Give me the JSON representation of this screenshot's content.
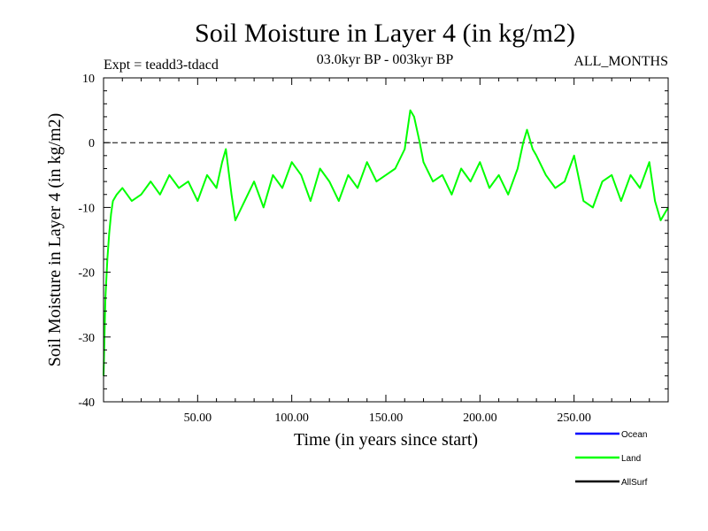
{
  "chart_data": {
    "type": "line",
    "title": "Soil Moisture in Layer 4 (in kg/m2)",
    "subtitle_left": "Expt = teadd3-tdacd",
    "subtitle_center": "03.0kyr BP - 003kyr BP",
    "subtitle_right": "ALL_MONTHS",
    "xlabel": "Time (in years since start)",
    "ylabel": "Soil Moisture in Layer 4 (in kg/m2)",
    "xlim": [
      0,
      300
    ],
    "ylim": [
      -40,
      10
    ],
    "x_tick_values": [
      50,
      100,
      150,
      200,
      250
    ],
    "x_tick_labels": [
      "50.00",
      "100.00",
      "150.00",
      "200.00",
      "250.00"
    ],
    "y_tick_values": [
      10,
      0,
      -10,
      -20,
      -30,
      -40
    ],
    "y_tick_labels": [
      "10",
      "0",
      "-10",
      "-20",
      "-30",
      "-40"
    ],
    "reference_line": 0,
    "legend_position": "bottom-right",
    "legend": [
      {
        "name": "Ocean",
        "color": "#0000ff"
      },
      {
        "name": "Land",
        "color": "#00ff00"
      },
      {
        "name": "AllSurf",
        "color": "#000000"
      }
    ],
    "series": [
      {
        "name": "Land",
        "color": "#00ff00",
        "x": [
          0,
          1,
          2,
          3,
          4,
          5,
          7,
          10,
          15,
          20,
          25,
          30,
          35,
          40,
          45,
          50,
          55,
          60,
          63,
          65,
          68,
          70,
          75,
          80,
          85,
          90,
          95,
          100,
          105,
          110,
          115,
          120,
          125,
          130,
          135,
          140,
          145,
          150,
          155,
          160,
          163,
          165,
          168,
          170,
          175,
          180,
          185,
          190,
          195,
          200,
          205,
          210,
          215,
          220,
          223,
          225,
          228,
          230,
          235,
          240,
          245,
          250,
          255,
          260,
          265,
          270,
          275,
          280,
          285,
          290,
          293,
          296,
          300
        ],
        "values": [
          -36,
          -24,
          -18,
          -14,
          -11,
          -9,
          -8,
          -7,
          -9,
          -8,
          -6,
          -8,
          -5,
          -7,
          -6,
          -9,
          -5,
          -7,
          -3,
          -1,
          -8,
          -12,
          -9,
          -6,
          -10,
          -5,
          -7,
          -3,
          -5,
          -9,
          -4,
          -6,
          -9,
          -5,
          -7,
          -3,
          -6,
          -5,
          -4,
          -1,
          5,
          4,
          0,
          -3,
          -6,
          -5,
          -8,
          -4,
          -6,
          -3,
          -7,
          -5,
          -8,
          -4,
          0,
          2,
          -1,
          -2,
          -5,
          -7,
          -6,
          -2,
          -9,
          -10,
          -6,
          -5,
          -9,
          -5,
          -7,
          -3,
          -9,
          -12,
          -10
        ]
      }
    ]
  }
}
